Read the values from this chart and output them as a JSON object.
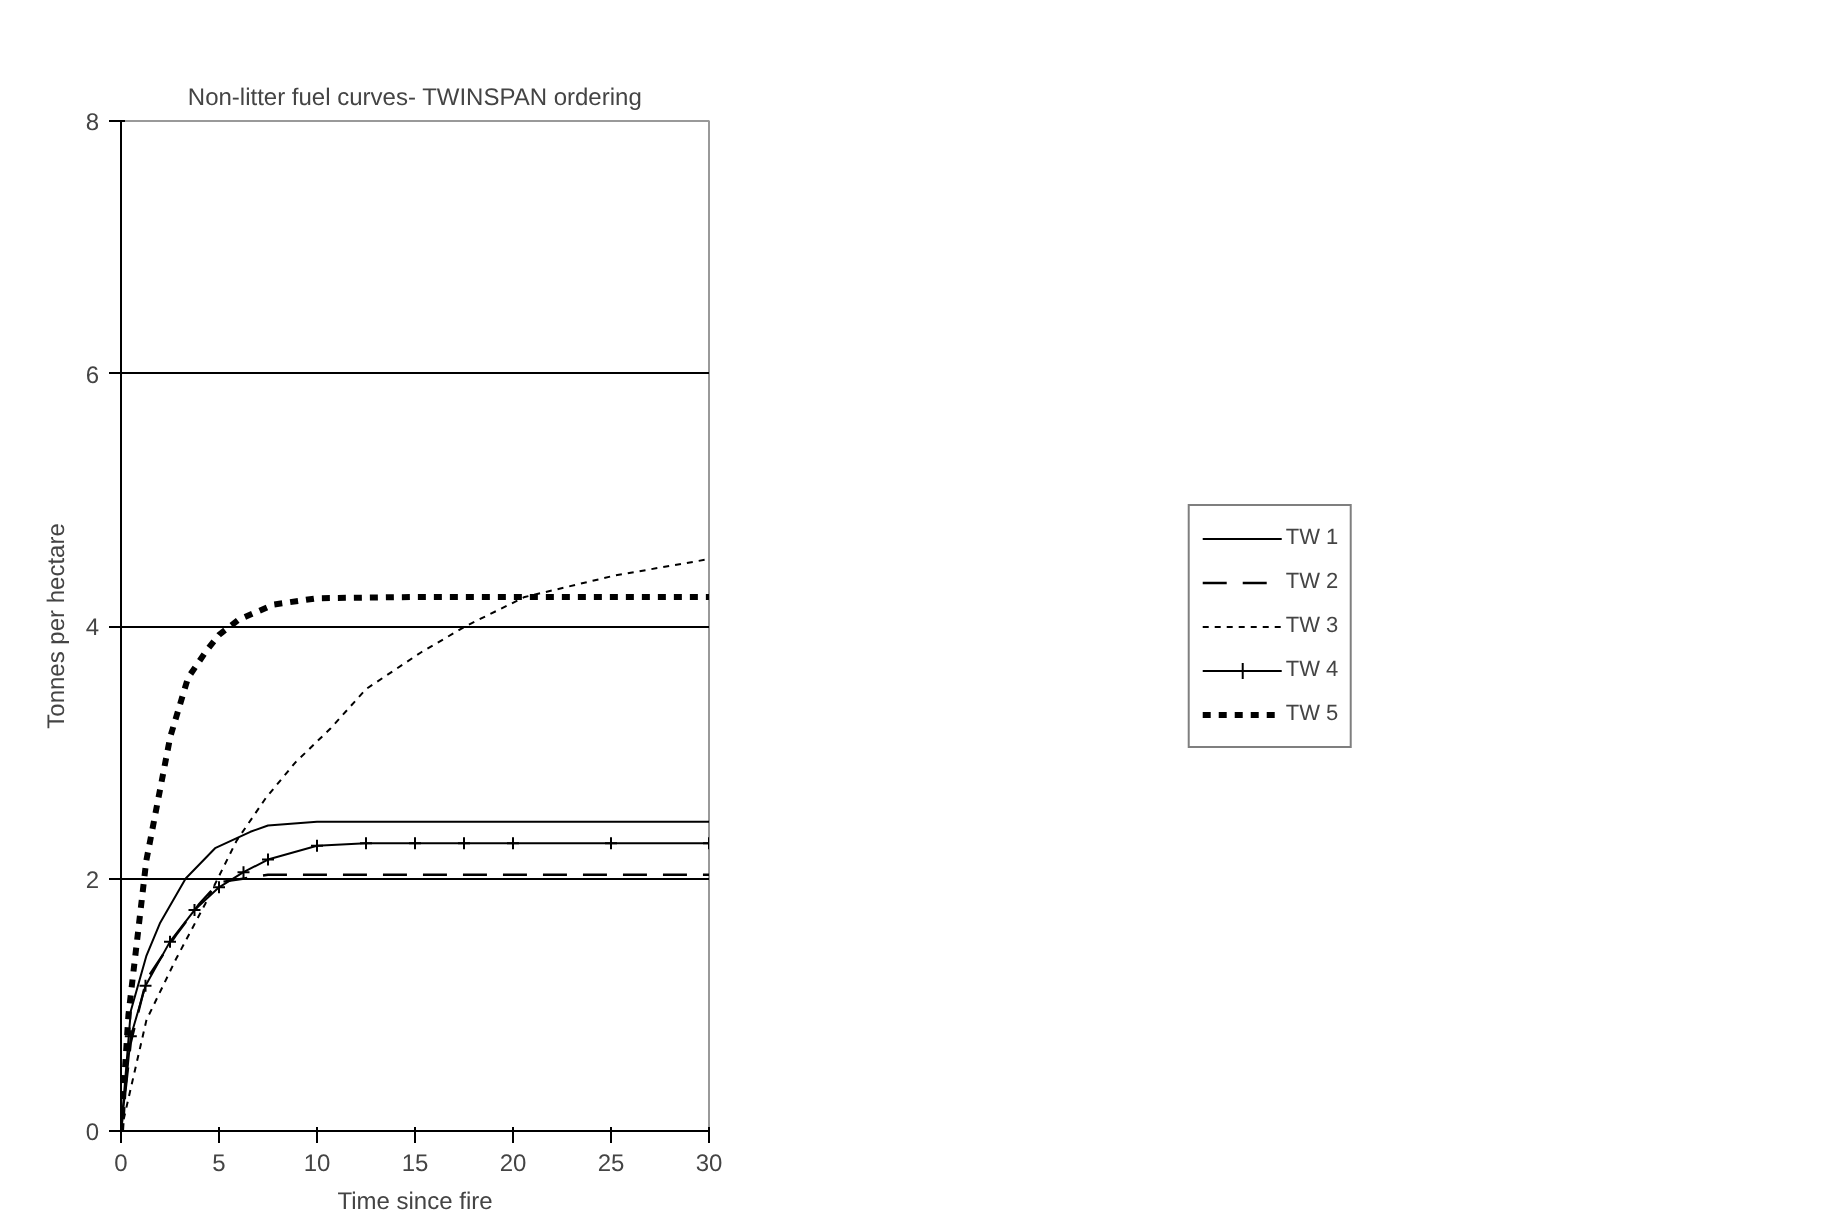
{
  "chart_data": {
    "type": "line",
    "title": "Non-litter fuel curves- TWINSPAN ordering",
    "xlabel": "Time since fire",
    "ylabel": "Tonnes per hectare",
    "xlim": [
      0,
      30
    ],
    "xticks": [
      0,
      5,
      10,
      15,
      20,
      25,
      30
    ],
    "ylim": [
      0,
      8
    ],
    "yticks": [
      0,
      2,
      4,
      6,
      8
    ],
    "grid": "y",
    "legend": "right",
    "marker": "none",
    "series": [
      {
        "name": "TW 1",
        "color": "#000000",
        "line_style": "solid",
        "x": [
          0,
          0.5,
          1.3,
          2,
          3.3,
          4.8,
          6.6,
          7.5,
          10,
          15,
          20,
          25,
          30
        ],
        "values": [
          0,
          0.95,
          1.39,
          1.65,
          2.0,
          2.24,
          2.37,
          2.42,
          2.45,
          2.45,
          2.45,
          2.45,
          2.45
        ]
      },
      {
        "name": "TW 2",
        "color": "#000000",
        "line_style": "dashed",
        "x": [
          0,
          0.5,
          1.3,
          2.8,
          4,
          5,
          6.3,
          7.5,
          10,
          15,
          20,
          25,
          30
        ],
        "values": [
          0,
          0.7,
          1.2,
          1.55,
          1.8,
          1.97,
          2.0,
          2.03,
          2.03,
          2.03,
          2.03,
          2.03,
          2.03
        ]
      },
      {
        "name": "TW 3",
        "color": "#000000",
        "line_style": "dotted",
        "x": [
          0,
          1.3,
          2.8,
          4.3,
          5.9,
          7.4,
          8.9,
          10.7,
          12.5,
          15.3,
          17.6,
          20.6,
          25.2,
          30
        ],
        "values": [
          0,
          0.88,
          1.36,
          1.8,
          2.3,
          2.64,
          2.92,
          3.19,
          3.5,
          3.79,
          4.0,
          4.23,
          4.4,
          4.53
        ]
      },
      {
        "name": "TW 4",
        "color": "#000000",
        "line_style": "solid",
        "marker": "cross",
        "x": [
          0,
          0.5,
          1.25,
          2.5,
          3.75,
          5,
          6.25,
          7.5,
          10,
          12.5,
          15,
          17.5,
          20,
          25,
          30
        ],
        "values": [
          0,
          0.75,
          1.15,
          1.5,
          1.75,
          1.93,
          2.05,
          2.15,
          2.26,
          2.28,
          2.28,
          2.28,
          2.28,
          2.28,
          2.28
        ]
      },
      {
        "name": "TW 5",
        "color": "#000000",
        "line_style": "bold dashed",
        "x": [
          0,
          0.38,
          0.91,
          1.29,
          2.05,
          2.51,
          3.42,
          4.34,
          5,
          6,
          7.8,
          10,
          15,
          20,
          25,
          30
        ],
        "values": [
          0,
          0.92,
          1.63,
          2.14,
          2.75,
          3.12,
          3.59,
          3.8,
          3.93,
          4.05,
          4.17,
          4.22,
          4.23,
          4.23,
          4.23,
          4.23
        ]
      }
    ]
  }
}
